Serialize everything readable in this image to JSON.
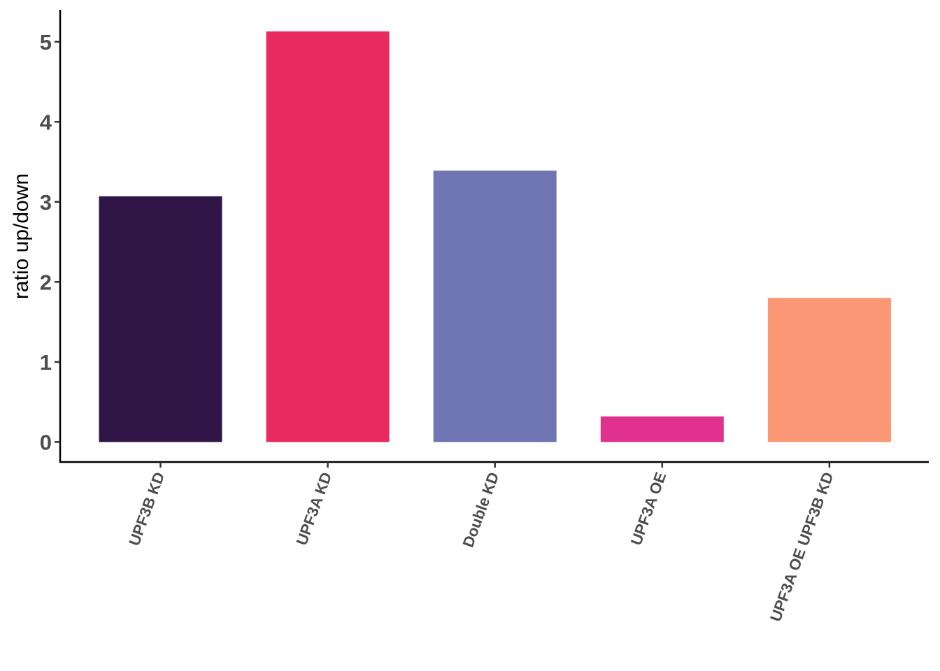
{
  "chart_data": {
    "type": "bar",
    "categories": [
      "UPF3B KD",
      "UPF3A KD",
      "Double KD",
      "UPF3A OE",
      "UPF3A OE UPF3B KD"
    ],
    "values": [
      3.07,
      5.13,
      3.39,
      0.32,
      1.8
    ],
    "colors": [
      "#301547",
      "#E92A5F",
      "#7075B3",
      "#E0318E",
      "#FC9775"
    ],
    "title": "",
    "xlabel": "",
    "ylabel": "ratio up/down",
    "yticks": [
      "0",
      "1",
      "2",
      "3",
      "4",
      "5"
    ],
    "ylim": [
      -0.25,
      5.4
    ],
    "grid": false,
    "legend": "none"
  }
}
